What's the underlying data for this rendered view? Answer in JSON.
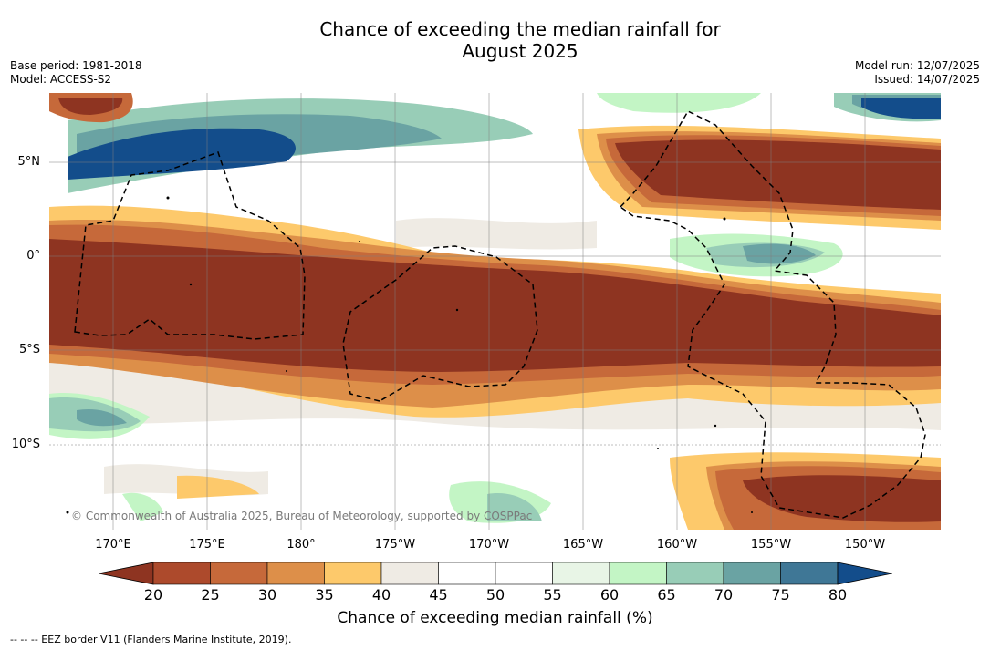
{
  "title_line1": "Chance of exceeding the median rainfall for",
  "title_line2": "August 2025",
  "base_period": "Base period: 1981-2018",
  "model": "Model: ACCESS-S2",
  "model_run": "Model run: 12/07/2025",
  "issued": "Issued: 14/07/2025",
  "lat_labels": [
    "5°N",
    "0°",
    "5°S",
    "10°S"
  ],
  "lon_labels": [
    "170°E",
    "175°E",
    "180°",
    "175°W",
    "170°W",
    "165°W",
    "160°W",
    "155°W",
    "150°W"
  ],
  "copyright": "© Commonwealth of Australia 2025, Bureau of Meteorology, supported by COSPPac",
  "colorbar": {
    "label": "Chance of exceeding median rainfall (%)",
    "ticks": [
      "20",
      "25",
      "30",
      "35",
      "40",
      "45",
      "50",
      "55",
      "60",
      "65",
      "70",
      "75",
      "80"
    ],
    "colors": [
      "#8e3421",
      "#ad4a2c",
      "#c6693a",
      "#dd8f49",
      "#fdc96b",
      "#efebe4",
      "#ffffff",
      "#ffffff",
      "#e8f5e6",
      "#c3f5c5",
      "#98cdb7",
      "#6aa3a3",
      "#3f7796",
      "#134d8b"
    ]
  },
  "footer": "--  --  -- EEZ border V11 (Flanders Marine Institute, 2019).",
  "colors": {
    "very_dry": "#8e3421",
    "dry": "#c6693a",
    "moderate": "#fdc96b",
    "neutral": "#efebe4",
    "wet": "#98cdb7",
    "very_wet": "#134d8b"
  }
}
